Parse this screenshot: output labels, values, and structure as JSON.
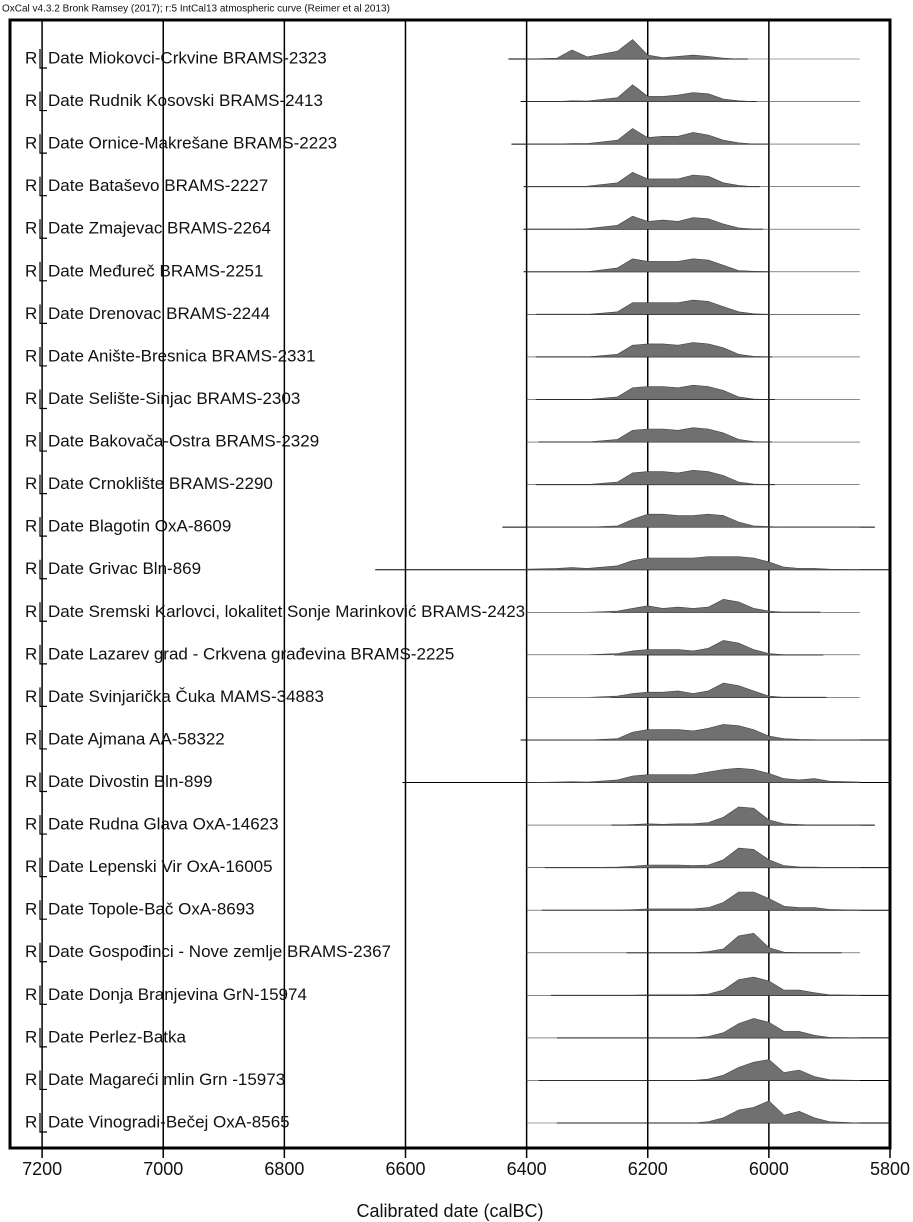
{
  "chart_data": {
    "type": "multiplot",
    "header": "OxCal v4.3.2 Bronk Ramsey (2017); r:5 IntCal13 atmospheric curve (Reimer et al 2013)",
    "xlabel": "Calibrated date (calBC)",
    "xlim": [
      7253,
      5800
    ],
    "xticks": [
      7200,
      7000,
      6800,
      6600,
      6400,
      6200,
      6000,
      5800
    ],
    "grid": true,
    "color": "#707070",
    "density_x": [
      6400,
      6350,
      6325,
      6300,
      6250,
      6225,
      6200,
      6175,
      6150,
      6125,
      6100,
      6075,
      6050,
      6025,
      6000,
      5975,
      5950,
      5925,
      5900,
      5850
    ],
    "rows": [
      {
        "prefix": "R",
        "name": "Date Miokovci-Crkvine BRAMS-2323",
        "range": [
          6430,
          6035
        ],
        "density": [
          0,
          0.03,
          0.35,
          0.08,
          0.3,
          0.75,
          0.15,
          0.05,
          0.1,
          0.15,
          0.1,
          0.03,
          0,
          0,
          0,
          0,
          0,
          0,
          0,
          0
        ]
      },
      {
        "prefix": "R",
        "name": "Date Rudnik Kosovski BRAMS-2413",
        "range": [
          6410,
          6020
        ],
        "density": [
          0,
          0,
          0.03,
          0.02,
          0.15,
          0.65,
          0.2,
          0.2,
          0.25,
          0.35,
          0.3,
          0.1,
          0.03,
          0,
          0,
          0,
          0,
          0,
          0,
          0
        ]
      },
      {
        "prefix": "R",
        "name": "Date Ornice-Makrešane BRAMS-2223",
        "range": [
          6425,
          6000
        ],
        "density": [
          0,
          0,
          0.02,
          0.02,
          0.15,
          0.6,
          0.25,
          0.3,
          0.3,
          0.45,
          0.35,
          0.15,
          0.05,
          0,
          0,
          0,
          0,
          0,
          0,
          0
        ]
      },
      {
        "prefix": "R",
        "name": "Date Bataševo BRAMS-2227",
        "range": [
          6405,
          6015
        ],
        "density": [
          0,
          0,
          0,
          0.02,
          0.15,
          0.55,
          0.3,
          0.3,
          0.3,
          0.45,
          0.4,
          0.15,
          0.05,
          0,
          0,
          0,
          0,
          0,
          0,
          0
        ]
      },
      {
        "prefix": "R",
        "name": "Date Zmajevac BRAMS-2264",
        "range": [
          6405,
          6010
        ],
        "density": [
          0,
          0,
          0,
          0.02,
          0.15,
          0.5,
          0.3,
          0.35,
          0.3,
          0.45,
          0.4,
          0.2,
          0.05,
          0,
          0,
          0,
          0,
          0,
          0,
          0
        ]
      },
      {
        "prefix": "R",
        "name": "Date Međureč BRAMS-2251",
        "range": [
          6405,
          6000
        ],
        "density": [
          0,
          0,
          0,
          0,
          0.15,
          0.5,
          0.4,
          0.4,
          0.4,
          0.5,
          0.45,
          0.25,
          0.05,
          0.02,
          0,
          0,
          0,
          0,
          0,
          0
        ]
      },
      {
        "prefix": "R",
        "name": "Date Drenovac BRAMS-2244",
        "range": [
          6385,
          6000
        ],
        "density": [
          0,
          0,
          0,
          0,
          0.1,
          0.45,
          0.45,
          0.45,
          0.45,
          0.55,
          0.5,
          0.3,
          0.1,
          0.02,
          0,
          0,
          0,
          0,
          0,
          0
        ]
      },
      {
        "prefix": "R",
        "name": "Date Anište-Bresnica BRAMS-2331",
        "range": [
          6385,
          5995
        ],
        "density": [
          0,
          0,
          0,
          0,
          0.1,
          0.45,
          0.5,
          0.5,
          0.45,
          0.55,
          0.5,
          0.35,
          0.1,
          0.02,
          0,
          0,
          0,
          0,
          0,
          0
        ]
      },
      {
        "prefix": "R",
        "name": "Date Selište-Sinjac BRAMS-2303",
        "range": [
          6385,
          5990
        ],
        "density": [
          0,
          0,
          0,
          0,
          0.1,
          0.45,
          0.5,
          0.5,
          0.45,
          0.55,
          0.5,
          0.35,
          0.1,
          0.02,
          0,
          0,
          0,
          0,
          0,
          0
        ]
      },
      {
        "prefix": "R",
        "name": "Date Bakovača-Ostra BRAMS-2329",
        "range": [
          6380,
          5995
        ],
        "density": [
          0,
          0,
          0,
          0,
          0.1,
          0.45,
          0.5,
          0.5,
          0.45,
          0.55,
          0.5,
          0.35,
          0.1,
          0.02,
          0,
          0,
          0,
          0,
          0,
          0
        ]
      },
      {
        "prefix": "R",
        "name": "Date Crnoklište BRAMS-2290",
        "range": [
          6385,
          5990
        ],
        "density": [
          0,
          0,
          0,
          0,
          0.1,
          0.45,
          0.5,
          0.5,
          0.45,
          0.55,
          0.5,
          0.35,
          0.1,
          0.02,
          0,
          0,
          0,
          0,
          0,
          0
        ]
      },
      {
        "prefix": "R",
        "name": "Date Blagotin OxA-8609",
        "range": [
          6440,
          5825
        ],
        "density": [
          0,
          0,
          0,
          0,
          0.05,
          0.3,
          0.5,
          0.5,
          0.45,
          0.45,
          0.5,
          0.45,
          0.2,
          0.05,
          0.02,
          0,
          0,
          0,
          0,
          0
        ]
      },
      {
        "prefix": "R",
        "name": "Date Grivac Bln-869",
        "range": [
          6650,
          5800
        ],
        "density": [
          0.02,
          0.05,
          0.08,
          0.05,
          0.15,
          0.35,
          0.45,
          0.45,
          0.45,
          0.45,
          0.5,
          0.5,
          0.5,
          0.45,
          0.3,
          0.1,
          0.05,
          0.05,
          0.02,
          0
        ]
      },
      {
        "prefix": "R",
        "name": "Date Sremski Karlovci, lokalitet Sonje Marinković BRAMS-2423",
        "range": [
          6260,
          5915
        ],
        "density": [
          0,
          0,
          0,
          0,
          0.05,
          0.15,
          0.25,
          0.15,
          0.2,
          0.15,
          0.2,
          0.5,
          0.4,
          0.15,
          0.05,
          0,
          0,
          0,
          0,
          0
        ]
      },
      {
        "prefix": "R",
        "name": "Date Lazarev grad - Crkvena građevina BRAMS-2225",
        "range": [
          6255,
          5910
        ],
        "density": [
          0,
          0,
          0,
          0,
          0.05,
          0.15,
          0.2,
          0.2,
          0.2,
          0.15,
          0.25,
          0.55,
          0.45,
          0.2,
          0.05,
          0,
          0,
          0,
          0,
          0
        ]
      },
      {
        "prefix": "R",
        "name": "Date Svinjarička Čuka MAMS-34883",
        "range": [
          6260,
          5905
        ],
        "density": [
          0,
          0,
          0,
          0,
          0.05,
          0.15,
          0.2,
          0.2,
          0.25,
          0.15,
          0.25,
          0.55,
          0.45,
          0.25,
          0.05,
          0,
          0,
          0,
          0,
          0
        ]
      },
      {
        "prefix": "R",
        "name": "Date Ajmana AA-58322",
        "range": [
          6410,
          5800
        ],
        "density": [
          0,
          0,
          0,
          0,
          0.05,
          0.3,
          0.4,
          0.4,
          0.4,
          0.35,
          0.45,
          0.6,
          0.55,
          0.4,
          0.15,
          0.05,
          0.02,
          0.01,
          0,
          0
        ]
      },
      {
        "prefix": "R",
        "name": "Date Divostin Bln-899",
        "range": [
          6605,
          5800
        ],
        "density": [
          0,
          0.02,
          0.03,
          0.02,
          0.1,
          0.25,
          0.3,
          0.3,
          0.3,
          0.3,
          0.4,
          0.5,
          0.55,
          0.5,
          0.35,
          0.15,
          0.1,
          0.15,
          0.05,
          0.02
        ]
      },
      {
        "prefix": "R",
        "name": "Date Rudna Glava OxA-14623",
        "range": [
          6260,
          5825
        ],
        "density": [
          0,
          0,
          0,
          0,
          0,
          0.02,
          0.05,
          0.03,
          0.05,
          0.05,
          0.1,
          0.3,
          0.7,
          0.65,
          0.2,
          0.05,
          0.02,
          0,
          0,
          0
        ]
      },
      {
        "prefix": "R",
        "name": "Date Lepenski Vir OxA-16005",
        "range": [
          6370,
          5800
        ],
        "density": [
          0,
          0,
          0,
          0,
          0.02,
          0.05,
          0.1,
          0.1,
          0.1,
          0.08,
          0.1,
          0.3,
          0.75,
          0.7,
          0.3,
          0.08,
          0.03,
          0.02,
          0,
          0
        ]
      },
      {
        "prefix": "R",
        "name": "Date Topole-Bač OxA-8693",
        "range": [
          6375,
          5800
        ],
        "density": [
          0,
          0,
          0,
          0,
          0,
          0.02,
          0.05,
          0.05,
          0.05,
          0.05,
          0.1,
          0.3,
          0.7,
          0.7,
          0.45,
          0.15,
          0.1,
          0.1,
          0.03,
          0
        ]
      },
      {
        "prefix": "R",
        "name": "Date Gospođinci - Nove zemlje BRAMS-2367",
        "range": [
          6235,
          5880
        ],
        "density": [
          0,
          0,
          0,
          0,
          0,
          0,
          0,
          0,
          0,
          0,
          0.05,
          0.15,
          0.65,
          0.75,
          0.2,
          0.02,
          0,
          0,
          0,
          0
        ]
      },
      {
        "prefix": "R",
        "name": "Date Donja Branjevina GrN-15974",
        "range": [
          6360,
          5800
        ],
        "density": [
          0,
          0,
          0,
          0,
          0,
          0,
          0.02,
          0.02,
          0.02,
          0.02,
          0.05,
          0.2,
          0.6,
          0.7,
          0.55,
          0.2,
          0.2,
          0.1,
          0.02,
          0
        ]
      },
      {
        "prefix": "R",
        "name": "Date Perlez-Batka",
        "range": [
          6350,
          5800
        ],
        "density": [
          0,
          0,
          0,
          0,
          0,
          0,
          0,
          0,
          0,
          0,
          0.05,
          0.2,
          0.55,
          0.75,
          0.6,
          0.25,
          0.25,
          0.1,
          0.02,
          0
        ]
      },
      {
        "prefix": "R",
        "name": "Date Magareći mlin Grn -15973",
        "range": [
          6380,
          5800
        ],
        "density": [
          0,
          0,
          0,
          0,
          0,
          0,
          0,
          0,
          0,
          0,
          0.05,
          0.2,
          0.5,
          0.7,
          0.8,
          0.3,
          0.4,
          0.15,
          0.03,
          0
        ]
      },
      {
        "prefix": "R",
        "name": "Date Vinogradi-Bečej OxA-8565",
        "range": [
          6350,
          5800
        ],
        "density": [
          0,
          0,
          0,
          0,
          0,
          0,
          0,
          0,
          0,
          0,
          0.05,
          0.2,
          0.5,
          0.6,
          0.85,
          0.3,
          0.45,
          0.2,
          0.05,
          0
        ]
      }
    ]
  }
}
